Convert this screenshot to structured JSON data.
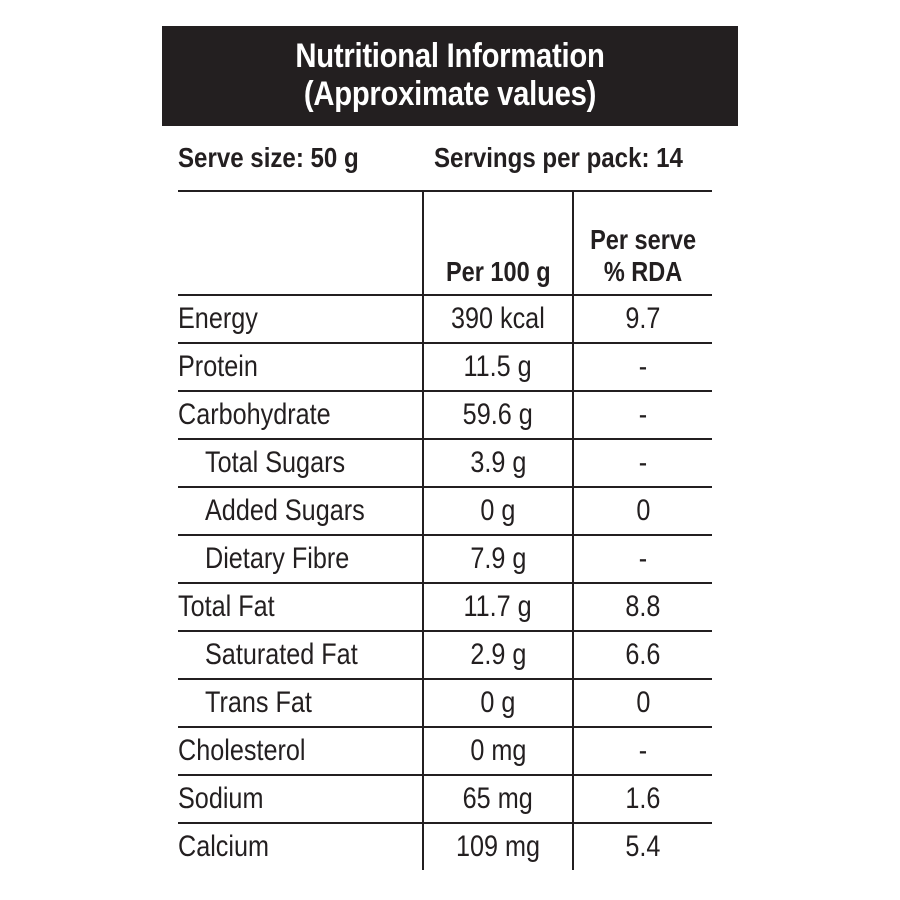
{
  "header": {
    "title_line1": "Nutritional Information",
    "title_line2": "(Approximate values)"
  },
  "serving": {
    "serve_size": "Serve size: 50 g",
    "servings_per_pack": "Servings per pack: 14"
  },
  "columns": {
    "per_100g": "Per 100 g",
    "per_serve_line1": "Per serve",
    "per_serve_line2": "% RDA"
  },
  "rows": [
    {
      "name": "Energy",
      "per_100g": "390 kcal",
      "rda": "9.7"
    },
    {
      "name": "Protein",
      "per_100g": "11.5 g",
      "rda": "-"
    },
    {
      "name": "Carbohydrate",
      "per_100g": "59.6 g",
      "rda": "-"
    },
    {
      "name": "Total Sugars",
      "per_100g": "3.9 g",
      "rda": "-"
    },
    {
      "name": "Added Sugars",
      "per_100g": "0 g",
      "rda": "0"
    },
    {
      "name": "Dietary Fibre",
      "per_100g": "7.9 g",
      "rda": "-"
    },
    {
      "name": "Total Fat",
      "per_100g": "11.7 g",
      "rda": "8.8"
    },
    {
      "name": "Saturated Fat",
      "per_100g": "2.9 g",
      "rda": "6.6"
    },
    {
      "name": "Trans Fat",
      "per_100g": "0 g",
      "rda": "0"
    },
    {
      "name": "Cholesterol",
      "per_100g": "0 mg",
      "rda": "-"
    },
    {
      "name": "Sodium",
      "per_100g": "65 mg",
      "rda": "1.6"
    },
    {
      "name": "Calcium",
      "per_100g": "109 mg",
      "rda": "5.4"
    }
  ],
  "colors": {
    "ink": "#231f20",
    "background": "#ffffff"
  }
}
